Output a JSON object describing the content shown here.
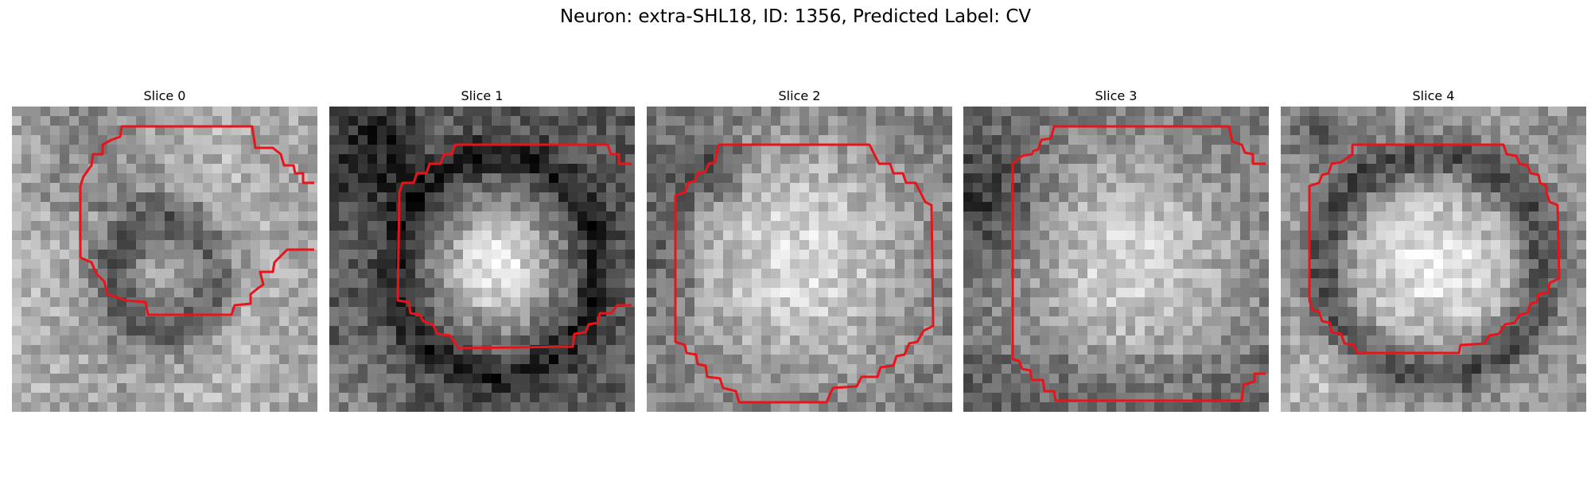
{
  "figure": {
    "title": "Neuron: extra-SHL18, ID: 1356, Predicted Label: CV",
    "contour_color": "#e8141b"
  },
  "slices": [
    {
      "title": "Slice 0",
      "image_kind": "dim-ring",
      "seed": 11
    },
    {
      "title": "Slice 1",
      "image_kind": "bright-blob-right-offset",
      "seed": 23
    },
    {
      "title": "Slice 2",
      "image_kind": "bright-large",
      "seed": 37
    },
    {
      "title": "Slice 3",
      "image_kind": "bright-large-dark-corner",
      "seed": 53
    },
    {
      "title": "Slice 4",
      "image_kind": "bright-ring",
      "seed": 71
    }
  ]
}
